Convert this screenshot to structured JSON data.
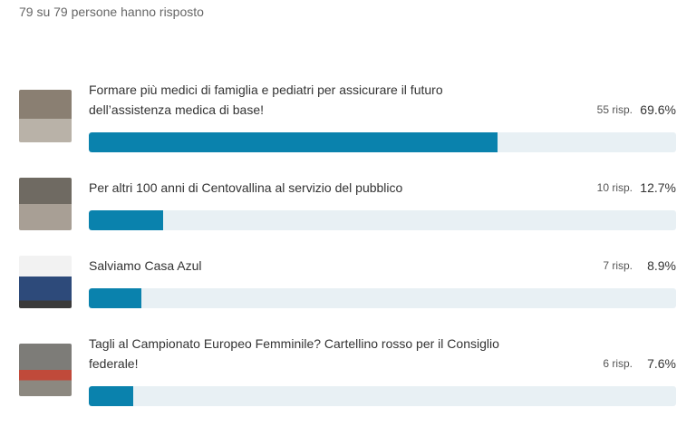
{
  "header": {
    "responded": "79 su 79 persone hanno risposto"
  },
  "options": [
    {
      "label": "Formare più medici di famiglia e pediatri per assicurare il futuro dell’assistenza medica di base!",
      "responses": "55 risp.",
      "percent": 69.6,
      "percent_label": "69.6%"
    },
    {
      "label": "Per altri 100 anni di Centovallina al servizio del pubblico",
      "responses": "10 risp.",
      "percent": 12.7,
      "percent_label": "12.7%"
    },
    {
      "label": "Salviamo Casa Azul",
      "responses": "7 risp.",
      "percent": 8.9,
      "percent_label": "8.9%"
    },
    {
      "label": "Tagli al Campionato Europeo Femminile? Cartellino rosso per il Consiglio federale!",
      "responses": "6 risp.",
      "percent": 7.6,
      "percent_label": "7.6%"
    }
  ]
}
